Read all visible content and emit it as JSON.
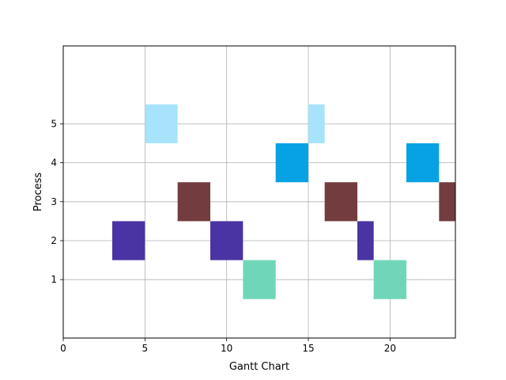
{
  "chart_data": {
    "type": "gantt",
    "xlabel": "Gantt Chart",
    "ylabel": "Process",
    "xlim": [
      0,
      24
    ],
    "ylim": [
      -0.5,
      7
    ],
    "grid": true,
    "x_ticks": [
      0,
      5,
      10,
      15,
      20
    ],
    "y_ticks": [
      1,
      2,
      3,
      4,
      5
    ],
    "processes": [
      {
        "process": 1,
        "color": "#6fd6b9",
        "segments": [
          [
            11,
            13
          ],
          [
            19,
            21
          ]
        ]
      },
      {
        "process": 2,
        "color": "#4a33a2",
        "segments": [
          [
            3,
            5
          ],
          [
            9,
            11
          ],
          [
            18,
            19
          ]
        ]
      },
      {
        "process": 3,
        "color": "#733d3f",
        "segments": [
          [
            7,
            9
          ],
          [
            16,
            18
          ],
          [
            23,
            24
          ]
        ]
      },
      {
        "process": 4,
        "color": "#06a2e4",
        "segments": [
          [
            13,
            15
          ],
          [
            21,
            23
          ]
        ]
      },
      {
        "process": 5,
        "color": "#a7e3fa",
        "segments": [
          [
            5,
            7
          ],
          [
            15,
            16
          ]
        ]
      }
    ]
  }
}
